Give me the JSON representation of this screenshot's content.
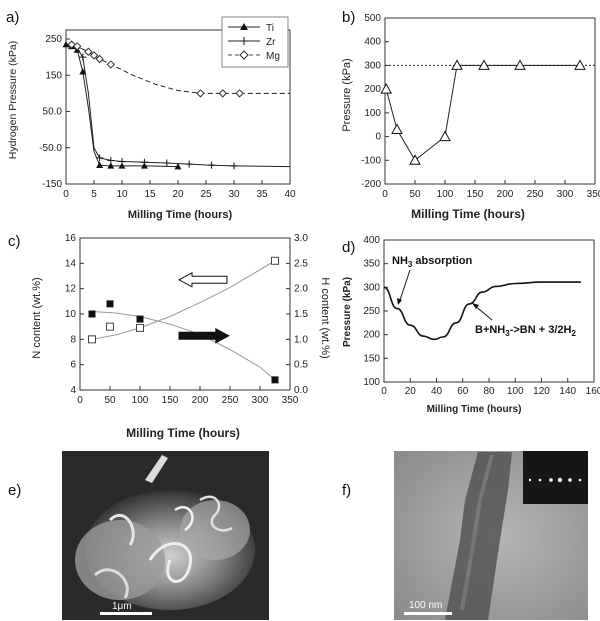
{
  "panel_labels": {
    "a": "a)",
    "b": "b)",
    "c": "c)",
    "d": "d)",
    "e": "e)",
    "f": "f)"
  },
  "chart_data": [
    {
      "id": "a",
      "type": "line",
      "xlabel": "Milling  Time  (hours)",
      "ylabel": "Hydrogen Pressure (kPa)",
      "xlim": [
        0,
        40
      ],
      "ylim": [
        -150,
        275
      ],
      "xticks": [
        "0",
        "5",
        "10",
        "15",
        "20",
        "25",
        "30",
        "35",
        "40"
      ],
      "yticks": [
        {
          "v": 250,
          "t": "250"
        },
        {
          "v": 150,
          "t": "150"
        },
        {
          "v": 50,
          "t": "50.0"
        },
        {
          "v": -50,
          "t": "-50.0"
        },
        {
          "v": -150,
          "t": "-150"
        }
      ],
      "legend_position": "top-right",
      "series": [
        {
          "name": "Ti",
          "marker": "triangle",
          "dash": "solid",
          "x": [
            0,
            1,
            2,
            3,
            4,
            5,
            6,
            8,
            10,
            14,
            20
          ],
          "y": [
            235,
            230,
            220,
            160,
            60,
            -60,
            -98,
            -100,
            -100,
            -100,
            -102
          ],
          "marker_x": [
            0,
            1,
            2,
            3,
            6,
            8,
            10,
            14,
            20
          ],
          "marker_y": [
            235,
            230,
            220,
            160,
            -98,
            -100,
            -100,
            -100,
            -102
          ]
        },
        {
          "name": "Zr",
          "marker": "plus",
          "dash": "solid",
          "x": [
            0,
            1,
            2,
            3,
            4,
            5,
            6,
            8,
            10,
            14,
            18,
            22,
            26,
            30,
            40
          ],
          "y": [
            235,
            232,
            225,
            200,
            100,
            -50,
            -78,
            -85,
            -88,
            -90,
            -92,
            -95,
            -98,
            -100,
            -102
          ],
          "marker_x": [
            1,
            2,
            3,
            6,
            8,
            10,
            14,
            18,
            22,
            26,
            30
          ],
          "marker_y": [
            232,
            225,
            200,
            -78,
            -85,
            -88,
            -90,
            -92,
            -95,
            -98,
            -100
          ]
        },
        {
          "name": "Mg",
          "marker": "diamond",
          "dash": "dashed",
          "x": [
            0,
            1,
            2,
            3,
            4,
            5,
            6,
            8,
            12,
            16,
            20,
            24,
            28,
            31,
            40
          ],
          "y": [
            235,
            235,
            230,
            222,
            215,
            205,
            195,
            180,
            150,
            125,
            108,
            100,
            100,
            100,
            100
          ],
          "marker_x": [
            1,
            2,
            4,
            5,
            6,
            8,
            24,
            28,
            31
          ],
          "marker_y": [
            235,
            230,
            215,
            205,
            195,
            180,
            100,
            100,
            100
          ]
        }
      ]
    },
    {
      "id": "b",
      "type": "line",
      "xlabel": "Milling Time (hours)",
      "ylabel": "Pressure (kPa)",
      "xlim": [
        0,
        350
      ],
      "ylim": [
        -200,
        500
      ],
      "xticks": [
        "0",
        "50",
        "100",
        "150",
        "200",
        "250",
        "300",
        "350"
      ],
      "yticks": [
        "-200",
        "-100",
        "0",
        "100",
        "200",
        "300",
        "400",
        "500"
      ],
      "reference_line_y": 300,
      "series": [
        {
          "name": "",
          "marker": "triangle",
          "x": [
            2,
            20,
            50,
            100,
            120,
            165,
            225,
            325
          ],
          "y": [
            200,
            30,
            -100,
            0,
            300,
            300,
            300,
            300
          ]
        }
      ]
    },
    {
      "id": "c",
      "type": "scatter",
      "xlabel": "Milling Time (hours)",
      "ylabel": "N content (wt.%)",
      "ylabel_right": "H content (wt.%)",
      "xlim": [
        0,
        350
      ],
      "ylim": [
        4,
        16
      ],
      "ylim_right": [
        0,
        3
      ],
      "xticks": [
        "0",
        "50",
        "100",
        "150",
        "200",
        "250",
        "300",
        "350"
      ],
      "yticks": [
        "4",
        "6",
        "8",
        "10",
        "12",
        "14",
        "16"
      ],
      "yticks_right": [
        "0.0",
        "0.5",
        "1.0",
        "1.5",
        "2.0",
        "2.5",
        "3.0"
      ],
      "series": [
        {
          "name": "",
          "marker": "open-square",
          "axis": "left",
          "x": [
            20,
            50,
            100,
            325
          ],
          "y": [
            8.0,
            9.0,
            8.9,
            14.2
          ],
          "fit_x": [
            20,
            60,
            100,
            150,
            200,
            250,
            300,
            325
          ],
          "fit_y": [
            8.0,
            8.35,
            8.9,
            9.8,
            10.9,
            12.1,
            13.5,
            14.2
          ]
        },
        {
          "name": "",
          "marker": "filled-square",
          "axis": "right",
          "x": [
            20,
            50,
            100,
            325
          ],
          "y": [
            1.5,
            1.7,
            1.4,
            0.2
          ],
          "fit_x": [
            20,
            60,
            100,
            150,
            200,
            250,
            300,
            325
          ],
          "fit_y": [
            1.55,
            1.52,
            1.45,
            1.3,
            1.1,
            0.8,
            0.45,
            0.2
          ]
        }
      ],
      "arrows": [
        {
          "style": "open",
          "direction": "left",
          "x_from": 245,
          "x_to": 165,
          "y": 12.7
        },
        {
          "style": "filled",
          "direction": "right",
          "x_from": 165,
          "x_to": 248,
          "y": 1.07
        }
      ]
    },
    {
      "id": "d",
      "type": "line",
      "xlabel": "Milling Time (hours)",
      "ylabel": "Pressure (kPa)",
      "xlim": [
        0,
        160
      ],
      "ylim": [
        100,
        400
      ],
      "xticks": [
        "0",
        "20",
        "40",
        "60",
        "80",
        "100",
        "120",
        "140",
        "160"
      ],
      "yticks": [
        "100",
        "150",
        "200",
        "250",
        "300",
        "350",
        "400"
      ],
      "annotations": [
        {
          "text": "NH",
          "sub": "3",
          "tail": " absorption"
        },
        {
          "text": "B+NH",
          "sub": "3",
          "mid": "->BN + 3/2H",
          "sub2": "2"
        }
      ],
      "series": [
        {
          "name": "",
          "marker": "none",
          "x": [
            0,
            10,
            20,
            30,
            38,
            45,
            55,
            65,
            75,
            85,
            100,
            120,
            150
          ],
          "y": [
            300,
            255,
            220,
            197,
            190,
            195,
            225,
            265,
            290,
            302,
            308,
            311,
            311
          ]
        }
      ]
    }
  ],
  "images": {
    "e": {
      "scale_bar": "1μm"
    },
    "f": {
      "scale_bar": "100 nm"
    }
  }
}
